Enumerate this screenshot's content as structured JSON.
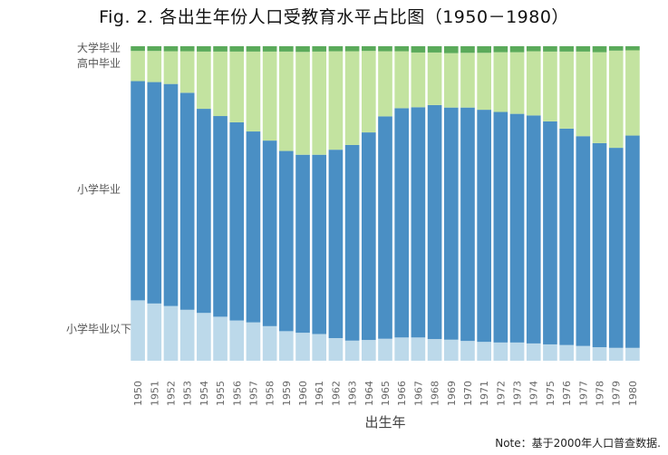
{
  "title": "Fig. 2. 各出生年份人口受教育水平占比图（1950－1980）",
  "note": "Note：基于2000年人口普查数据.",
  "colors": {
    "college": "#5aaa5a",
    "highschool": "#c3e3a0",
    "primary": "#4a8fc4",
    "below_primary": "#bcd9ea"
  },
  "chart_data": {
    "type": "bar",
    "stacked": true,
    "normalized": true,
    "xlabel": "出生年",
    "ylabel": "",
    "ylim": [
      0,
      1
    ],
    "categories": [
      "1950",
      "1951",
      "1952",
      "1953",
      "1954",
      "1955",
      "1956",
      "1957",
      "1958",
      "1959",
      "1960",
      "1961",
      "1962",
      "1963",
      "1964",
      "1965",
      "1966",
      "1967",
      "1968",
      "1969",
      "1970",
      "1971",
      "1972",
      "1973",
      "1974",
      "1975",
      "1976",
      "1977",
      "1978",
      "1979",
      "1980"
    ],
    "series": [
      {
        "name": "小学毕业以下",
        "key": "below_primary",
        "values": [
          0.192,
          0.182,
          0.174,
          0.162,
          0.152,
          0.14,
          0.128,
          0.122,
          0.11,
          0.094,
          0.089,
          0.085,
          0.072,
          0.064,
          0.066,
          0.07,
          0.074,
          0.074,
          0.069,
          0.067,
          0.063,
          0.06,
          0.058,
          0.058,
          0.055,
          0.052,
          0.05,
          0.047,
          0.043,
          0.041,
          0.041
        ]
      },
      {
        "name": "小学毕业",
        "key": "primary",
        "values": [
          0.697,
          0.704,
          0.706,
          0.69,
          0.649,
          0.638,
          0.63,
          0.607,
          0.59,
          0.573,
          0.566,
          0.57,
          0.599,
          0.622,
          0.66,
          0.707,
          0.729,
          0.732,
          0.744,
          0.738,
          0.742,
          0.738,
          0.733,
          0.727,
          0.725,
          0.709,
          0.688,
          0.667,
          0.649,
          0.636,
          0.675
        ]
      },
      {
        "name": "高中毕业",
        "key": "highschool",
        "values": [
          0.096,
          0.099,
          0.104,
          0.132,
          0.182,
          0.205,
          0.225,
          0.254,
          0.283,
          0.316,
          0.327,
          0.328,
          0.313,
          0.298,
          0.259,
          0.207,
          0.181,
          0.174,
          0.167,
          0.173,
          0.174,
          0.181,
          0.19,
          0.196,
          0.204,
          0.222,
          0.245,
          0.269,
          0.289,
          0.309,
          0.271
        ]
      },
      {
        "name": "大学毕业",
        "key": "college",
        "values": [
          0.015,
          0.015,
          0.016,
          0.016,
          0.017,
          0.017,
          0.017,
          0.017,
          0.017,
          0.017,
          0.018,
          0.017,
          0.016,
          0.016,
          0.015,
          0.016,
          0.016,
          0.02,
          0.02,
          0.022,
          0.021,
          0.021,
          0.019,
          0.019,
          0.016,
          0.017,
          0.017,
          0.017,
          0.019,
          0.014,
          0.013
        ]
      }
    ]
  }
}
